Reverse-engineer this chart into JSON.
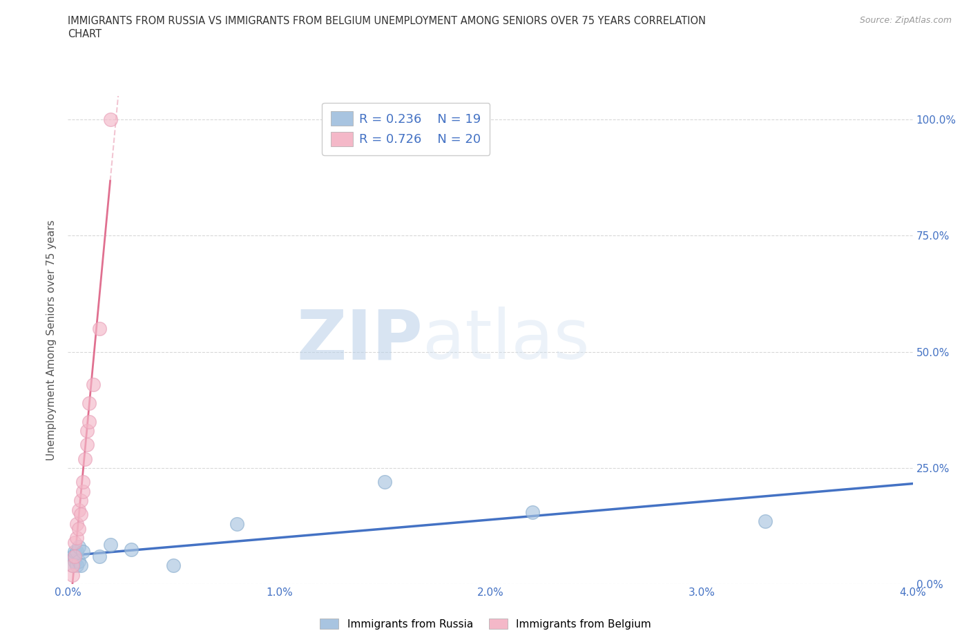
{
  "title_line1": "IMMIGRANTS FROM RUSSIA VS IMMIGRANTS FROM BELGIUM UNEMPLOYMENT AMONG SENIORS OVER 75 YEARS CORRELATION",
  "title_line2": "CHART",
  "source": "Source: ZipAtlas.com",
  "ylabel": "Unemployment Among Seniors over 75 years",
  "xlim": [
    0.0,
    0.04
  ],
  "ylim": [
    0.0,
    1.05
  ],
  "xtick_labels": [
    "0.0%",
    "1.0%",
    "2.0%",
    "3.0%",
    "4.0%"
  ],
  "xtick_values": [
    0.0,
    0.01,
    0.02,
    0.03,
    0.04
  ],
  "ytick_labels": [
    "0.0%",
    "25.0%",
    "50.0%",
    "75.0%",
    "100.0%"
  ],
  "ytick_values": [
    0.0,
    0.25,
    0.5,
    0.75,
    1.0
  ],
  "russia_color": "#a8c4e0",
  "russia_edge_color": "#8aaece",
  "russia_line_color": "#4472c4",
  "belgium_color": "#f4b8c8",
  "belgium_edge_color": "#e8a0b8",
  "belgium_line_color": "#e07090",
  "russia_R": 0.236,
  "russia_N": 19,
  "belgium_R": 0.726,
  "belgium_N": 20,
  "legend_text_color": "#4472c4",
  "watermark_zip": "ZIP",
  "watermark_atlas": "atlas",
  "russia_x": [
    0.0002,
    0.0002,
    0.0003,
    0.0003,
    0.0003,
    0.0004,
    0.0004,
    0.0005,
    0.0005,
    0.0006,
    0.0007,
    0.0015,
    0.002,
    0.003,
    0.005,
    0.008,
    0.015,
    0.022,
    0.033
  ],
  "russia_y": [
    0.04,
    0.06,
    0.05,
    0.06,
    0.07,
    0.04,
    0.07,
    0.05,
    0.08,
    0.04,
    0.07,
    0.06,
    0.085,
    0.075,
    0.04,
    0.13,
    0.22,
    0.155,
    0.135
  ],
  "belgium_x": [
    0.0002,
    0.0002,
    0.0003,
    0.0003,
    0.0004,
    0.0004,
    0.0005,
    0.0005,
    0.0006,
    0.0006,
    0.0007,
    0.0007,
    0.0008,
    0.0009,
    0.0009,
    0.001,
    0.001,
    0.0012,
    0.0015,
    0.002
  ],
  "belgium_y": [
    0.02,
    0.04,
    0.06,
    0.09,
    0.1,
    0.13,
    0.12,
    0.16,
    0.15,
    0.18,
    0.2,
    0.22,
    0.27,
    0.3,
    0.33,
    0.35,
    0.39,
    0.43,
    0.55,
    1.0
  ],
  "background_color": "#ffffff",
  "grid_color": "#d8d8d8",
  "tick_color": "#4472c4",
  "label_color": "#555555",
  "title_color": "#333333",
  "source_color": "#999999",
  "circle_size": 200
}
